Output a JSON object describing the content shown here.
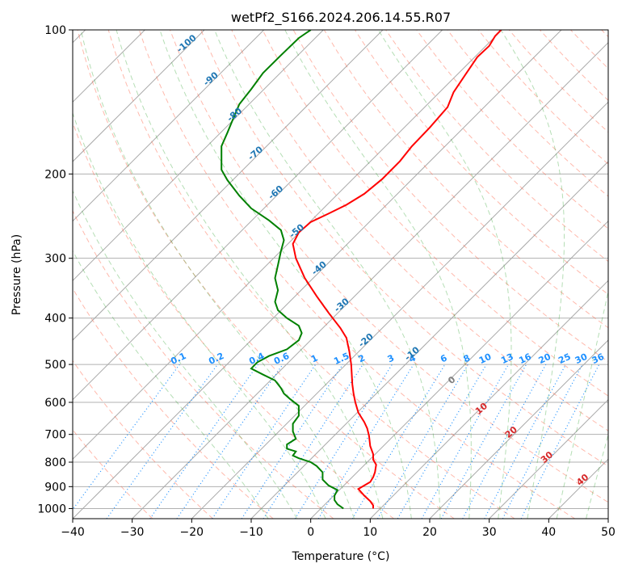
{
  "chart_data": {
    "type": "line",
    "title": "wetPf2_S166.2024.206.14.55.R07",
    "xlabel": "Temperature (°C)",
    "ylabel": "Pressure (hPa)",
    "xlim": [
      -40,
      50
    ],
    "ylim": [
      1050,
      100
    ],
    "y_scale": "log",
    "grid": true,
    "x_ticks": [
      -40,
      -30,
      -20,
      -10,
      0,
      10,
      20,
      30,
      40,
      50
    ],
    "y_ticks": [
      1000,
      900,
      800,
      700,
      600,
      500,
      400,
      300,
      200,
      100
    ],
    "series": [
      {
        "color": "#ff0000",
        "points": [
          [
            10.5,
            1000
          ],
          [
            10.5,
            985
          ],
          [
            10,
            965
          ],
          [
            9,
            940
          ],
          [
            8,
            910
          ],
          [
            9,
            895
          ],
          [
            10,
            880
          ],
          [
            10.5,
            860
          ],
          [
            10.8,
            840
          ],
          [
            11,
            810
          ],
          [
            10.5,
            790
          ],
          [
            10.5,
            770
          ],
          [
            10,
            740
          ],
          [
            9.8,
            705
          ],
          [
            9.5,
            680
          ],
          [
            9,
            660
          ],
          [
            8,
            630
          ],
          [
            7.5,
            600
          ],
          [
            7.2,
            575
          ],
          [
            7,
            550
          ],
          [
            6.8,
            500
          ],
          [
            6.5,
            470
          ],
          [
            6,
            440
          ],
          [
            5,
            420
          ],
          [
            3,
            390
          ],
          [
            1,
            360
          ],
          [
            -1,
            330
          ],
          [
            -2.5,
            300
          ],
          [
            -3,
            280
          ],
          [
            -2,
            265
          ],
          [
            0,
            252
          ],
          [
            3,
            242
          ],
          [
            6,
            232
          ],
          [
            9,
            220
          ],
          [
            12,
            205
          ],
          [
            15,
            188
          ],
          [
            17,
            175
          ],
          [
            20,
            160
          ],
          [
            23,
            145
          ],
          [
            24,
            135
          ],
          [
            26,
            124
          ],
          [
            28,
            114
          ],
          [
            30,
            108
          ],
          [
            31,
            103
          ],
          [
            32,
            100
          ]
        ]
      },
      {
        "color": "#008000",
        "points": [
          [
            5.5,
            1000
          ],
          [
            4.5,
            980
          ],
          [
            4,
            960
          ],
          [
            4,
            940
          ],
          [
            4.5,
            915
          ],
          [
            3,
            895
          ],
          [
            2,
            870
          ],
          [
            2,
            840
          ],
          [
            1,
            815
          ],
          [
            0,
            800
          ],
          [
            -2,
            785
          ],
          [
            -3,
            775
          ],
          [
            -2.5,
            760
          ],
          [
            -4,
            750
          ],
          [
            -4,
            735
          ],
          [
            -2.5,
            715
          ],
          [
            -3,
            690
          ],
          [
            -3,
            665
          ],
          [
            -2,
            640
          ],
          [
            -2,
            610
          ],
          [
            -3.5,
            590
          ],
          [
            -4.5,
            575
          ],
          [
            -5,
            560
          ],
          [
            -6,
            540
          ],
          [
            -8,
            525
          ],
          [
            -10,
            510
          ],
          [
            -9,
            495
          ],
          [
            -7,
            480
          ],
          [
            -4,
            465
          ],
          [
            -2,
            445
          ],
          [
            -1.5,
            430
          ],
          [
            -2,
            415
          ],
          [
            -4,
            400
          ],
          [
            -5.5,
            385
          ],
          [
            -6,
            370
          ],
          [
            -5.5,
            350
          ],
          [
            -6,
            330
          ],
          [
            -5.5,
            310
          ],
          [
            -5,
            290
          ],
          [
            -4.5,
            275
          ],
          [
            -5,
            262
          ],
          [
            -7,
            250
          ],
          [
            -10,
            236
          ],
          [
            -12,
            222
          ],
          [
            -14,
            206
          ],
          [
            -15,
            196
          ],
          [
            -15,
            185
          ],
          [
            -15,
            175
          ],
          [
            -14,
            164
          ],
          [
            -13,
            153
          ],
          [
            -12,
            143
          ],
          [
            -10,
            133
          ],
          [
            -8,
            123
          ],
          [
            -5,
            113
          ],
          [
            -2,
            104
          ],
          [
            0,
            100
          ]
        ]
      }
    ],
    "isotherm_labels": [
      "-100",
      "-90",
      "-80",
      "-70",
      "-60",
      "-50",
      "-40",
      "-30",
      "-20",
      "-10"
    ],
    "mixing_ratio_labels": [
      "0.1",
      "0.2",
      "0.4",
      "0.6",
      "1",
      "1.5",
      "2",
      "3",
      "4",
      "6",
      "8",
      "10",
      "13",
      "16",
      "20",
      "25",
      "30",
      "36"
    ],
    "moist_adiabat_labels": [
      "0",
      "10",
      "20",
      "30",
      "40"
    ],
    "colors": {
      "temperature": "#ff0000",
      "dewpoint": "#008000",
      "isotherm": "#808080",
      "isotherm_label": "#1f77b4",
      "dry_adiabat": "#ff6347",
      "moist_adiabat": "#2ca02c",
      "mixing_ratio": "#1e90ff",
      "theta_e": "#d2b48c",
      "moist_label": "#d62728",
      "moist_zero_label": "#808080"
    }
  }
}
